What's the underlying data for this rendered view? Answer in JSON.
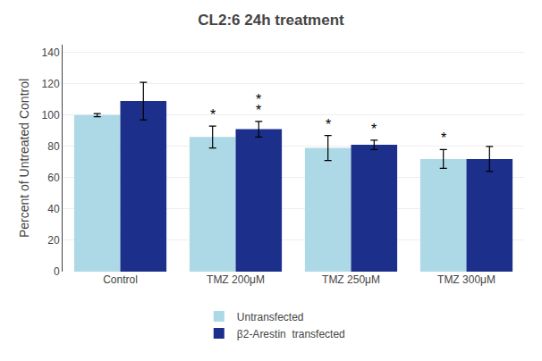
{
  "chart_data": {
    "type": "bar",
    "title": "CL2:6 24h treatment",
    "ylabel": "Percent of Untreated Control",
    "categories": [
      "Control",
      "TMZ 200μM",
      "TMZ 250μM",
      "TMZ 300μM"
    ],
    "series": [
      {
        "name": "Untransfected",
        "color": "#ADD8E6",
        "values": [
          100,
          86,
          79,
          72
        ],
        "errors": [
          1,
          7,
          8,
          6
        ]
      },
      {
        "name": "β2-Arestin  transfected",
        "color": "#1C2F8A",
        "values": [
          109,
          91,
          81,
          72
        ],
        "errors": [
          12,
          5,
          3,
          8
        ]
      }
    ],
    "annotations": [
      {
        "text": "*",
        "series": "Untransfected",
        "category": "TMZ 200μM"
      },
      {
        "text": "*",
        "series": "Untransfected",
        "category": "TMZ 250μM"
      },
      {
        "text": "*",
        "series": "Untransfected",
        "category": "TMZ 300μM"
      },
      {
        "text": "*",
        "series": "β2-Arestin  transfected",
        "category": "TMZ 200μM"
      },
      {
        "text": "*",
        "series": "β2-Arestin  transfected",
        "category": "TMZ 250μM"
      },
      {
        "text": "*",
        "series": "β2-Arestin  transfected",
        "category": "TMZ 200μM"
      }
    ],
    "ylim": [
      0,
      145
    ],
    "yticks": [
      0,
      20,
      40,
      60,
      80,
      100,
      120,
      140
    ],
    "grid": true,
    "legend": "bottom"
  }
}
